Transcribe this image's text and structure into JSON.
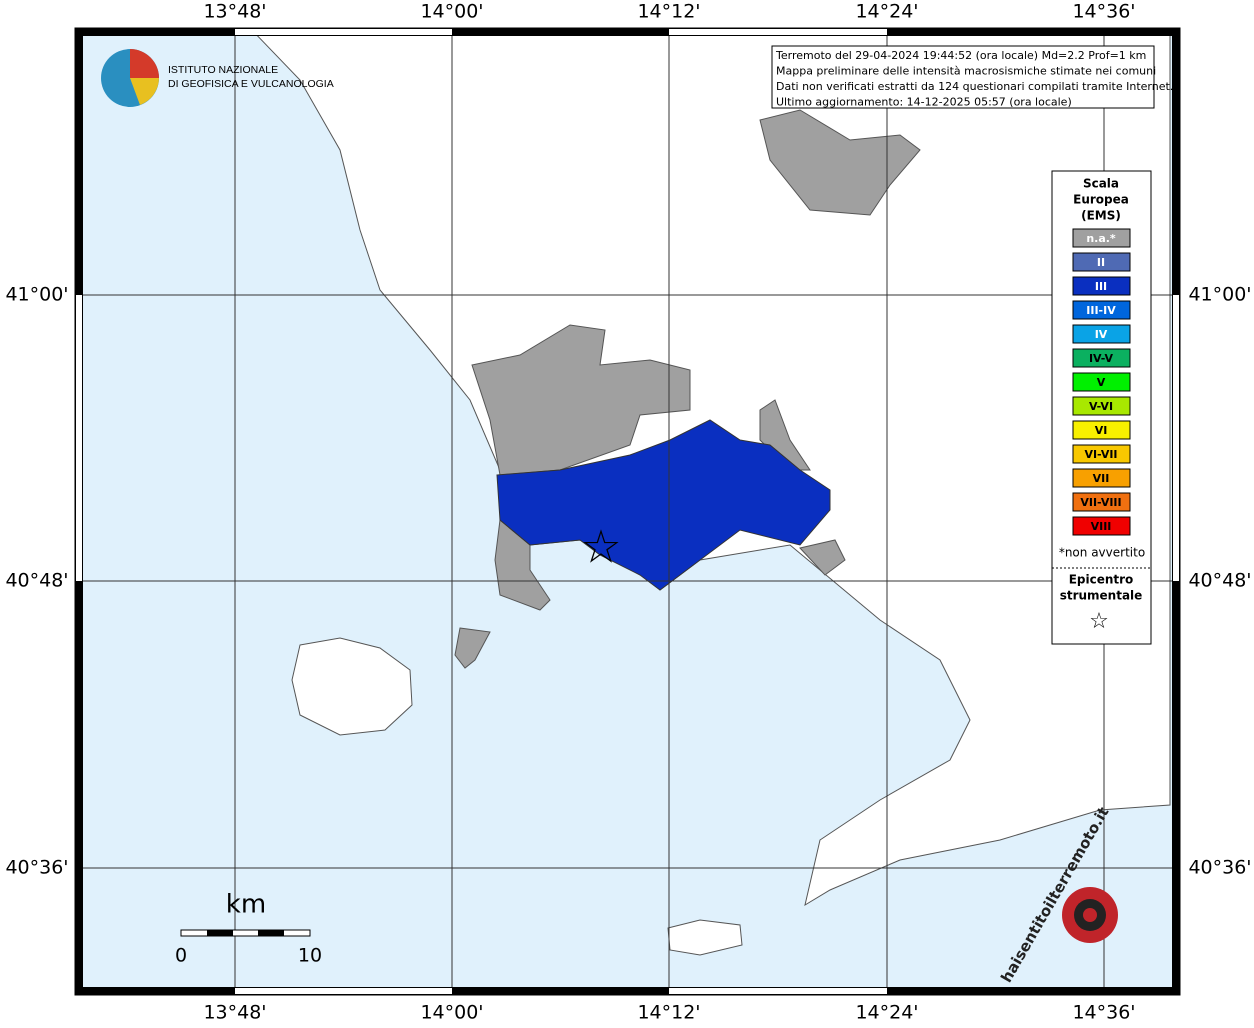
{
  "map": {
    "lon_labels": [
      "13°48'",
      "14°00'",
      "14°12'",
      "14°24'",
      "14°36'"
    ],
    "lat_labels": [
      "41°00'",
      "40°48'",
      "40°36'"
    ]
  },
  "info": {
    "lines": [
      "Terremoto del 29-04-2024 19:44:52 (ora locale) Md=2.2 Prof=1 km",
      "Mappa preliminare delle intensità macrosismiche stimate nei comuni",
      "Dati non verificati estratti da 124 questionari compilati tramite Internet.",
      "Ultimo aggiornamento: 14-12-2025 05:57 (ora locale)"
    ]
  },
  "logo": {
    "lines": [
      "ISTITUTO NAZIONALE",
      "DI GEOFISICA E VULCANOLOGIA"
    ]
  },
  "legend": {
    "title": [
      "Scala",
      "Europea",
      "(EMS)"
    ],
    "items": [
      {
        "label": "n.a.*",
        "color": "#a0a0a0"
      },
      {
        "label": "II",
        "color": "#4f6ab4"
      },
      {
        "label": "III",
        "color": "#0a2fc0"
      },
      {
        "label": "III-IV",
        "color": "#0066dd"
      },
      {
        "label": "IV",
        "color": "#0aa3e6"
      },
      {
        "label": "IV-V",
        "color": "#0bb060"
      },
      {
        "label": "V",
        "color": "#00f000"
      },
      {
        "label": "V-VI",
        "color": "#a8e800"
      },
      {
        "label": "VI",
        "color": "#f8f000"
      },
      {
        "label": "VI-VII",
        "color": "#f8c800"
      },
      {
        "label": "VII",
        "color": "#f8a000"
      },
      {
        "label": "VII-VIII",
        "color": "#f07010"
      },
      {
        "label": "VIII",
        "color": "#f00000"
      }
    ],
    "note": "*non avvertito",
    "epicenter": [
      "Epicentro",
      "strumentale"
    ]
  },
  "scale_bar": {
    "unit": "km",
    "ticks": [
      0,
      10
    ]
  },
  "watermark": "haisentitoilterremoto.it"
}
